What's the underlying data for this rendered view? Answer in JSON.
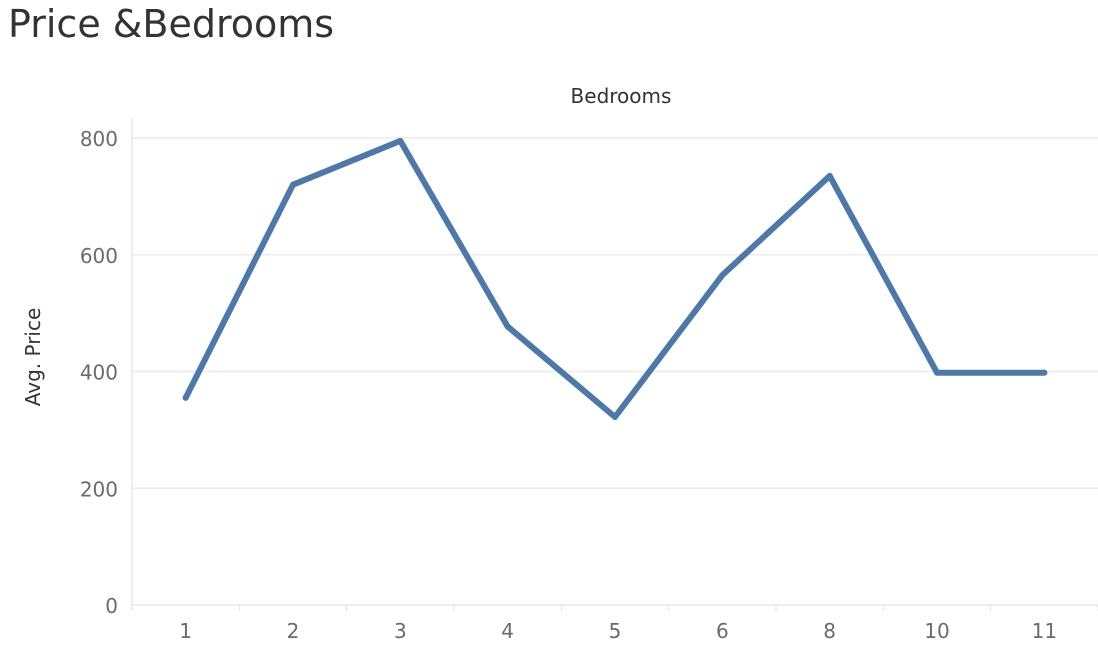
{
  "title": "Price &Bedrooms",
  "chart_data": {
    "type": "line",
    "xlabel": "Bedrooms",
    "ylabel": "Avg. Price",
    "categories": [
      "1",
      "2",
      "3",
      "4",
      "5",
      "6",
      "8",
      "10",
      "11"
    ],
    "values": [
      355,
      720,
      795,
      477,
      322,
      565,
      735,
      398,
      398
    ],
    "yticks": [
      0,
      200,
      400,
      600,
      800
    ],
    "ylim": [
      0,
      840
    ],
    "grid": "horizontal",
    "x_axis_title_position": "top",
    "line_color": "#4e79a7"
  }
}
